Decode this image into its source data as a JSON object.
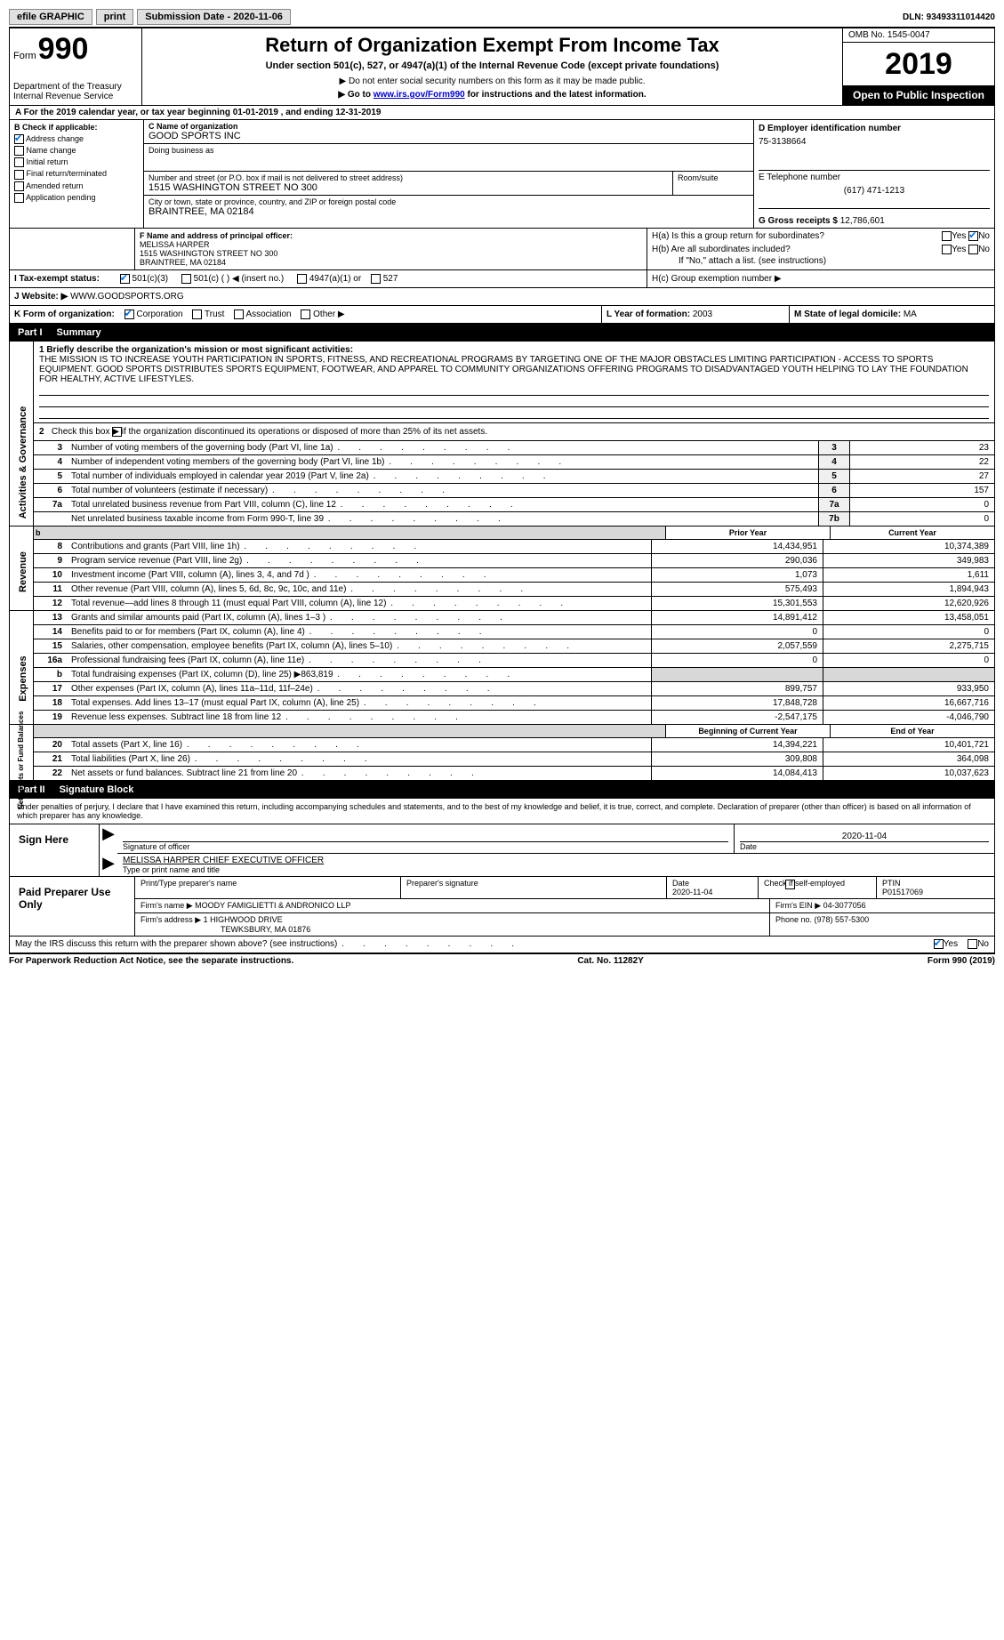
{
  "topbar": {
    "efile": "efile GRAPHIC",
    "print": "print",
    "sub_date_label": "Submission Date - 2020-11-06",
    "dln": "DLN: 93493311014420"
  },
  "header": {
    "form_label": "Form",
    "form_number": "990",
    "dept1": "Department of the Treasury",
    "dept2": "Internal Revenue Service",
    "title": "Return of Organization Exempt From Income Tax",
    "subtitle": "Under section 501(c), 527, or 4947(a)(1) of the Internal Revenue Code (except private foundations)",
    "note1": "▶ Do not enter social security numbers on this form as it may be made public.",
    "note2_a": "▶ Go to ",
    "note2_link": "www.irs.gov/Form990",
    "note2_b": " for instructions and the latest information.",
    "omb": "OMB No. 1545-0047",
    "year": "2019",
    "pub_insp": "Open to Public Inspection"
  },
  "tax_year_row": "A For the 2019 calendar year, or tax year beginning 01-01-2019    , and ending 12-31-2019",
  "section_b": {
    "title": "B Check if applicable:",
    "items": [
      "Address change",
      "Name change",
      "Initial return",
      "Final return/terminated",
      "Amended return",
      "Application pending"
    ],
    "checked_index": 0
  },
  "section_c": {
    "label_name": "C Name of organization",
    "org_name": "GOOD SPORTS INC",
    "dba_label": "Doing business as",
    "addr_label": "Number and street (or P.O. box if mail is not delivered to street address)",
    "room_label": "Room/suite",
    "addr": "1515 WASHINGTON STREET NO 300",
    "city_label": "City or town, state or province, country, and ZIP or foreign postal code",
    "city": "BRAINTREE, MA  02184"
  },
  "section_d": {
    "label": "D Employer identification number",
    "value": "75-3138664",
    "e_label": "E Telephone number",
    "e_value": "(617) 471-1213",
    "g_label": "G Gross receipts $ ",
    "g_value": "12,786,601"
  },
  "section_f": {
    "label": "F Name and address of principal officer:",
    "name": "MELISSA HARPER",
    "addr1": "1515 WASHINGTON STREET NO 300",
    "addr2": "BRAINTREE, MA  02184"
  },
  "section_h": {
    "ha": "H(a)  Is this a group return for subordinates?",
    "hb": "H(b)  Are all subordinates included?",
    "hb_note": "If \"No,\" attach a list. (see instructions)",
    "hc": "H(c)  Group exemption number ▶",
    "yes": "Yes",
    "no": "No"
  },
  "row_i": {
    "label": "I   Tax-exempt status:",
    "opts": [
      "501(c)(3)",
      "501(c) (  ) ◀ (insert no.)",
      "4947(a)(1) or",
      "527"
    ]
  },
  "row_j": {
    "label": "J   Website: ▶",
    "value": " WWW.GOODSPORTS.ORG"
  },
  "row_k": {
    "label": "K Form of organization:",
    "opts": [
      "Corporation",
      "Trust",
      "Association",
      "Other ▶"
    ],
    "l_label": "L Year of formation: ",
    "l_value": "2003",
    "m_label": "M State of legal domicile: ",
    "m_value": "MA"
  },
  "part1": {
    "part_label": "Part I",
    "title": "Summary",
    "mission_label": "1  Briefly describe the organization's mission or most significant activities:",
    "mission": "THE MISSION IS TO INCREASE YOUTH PARTICIPATION IN SPORTS, FITNESS, AND RECREATIONAL PROGRAMS BY TARGETING ONE OF THE MAJOR OBSTACLES LIMITING PARTICIPATION - ACCESS TO SPORTS EQUIPMENT. GOOD SPORTS DISTRIBUTES SPORTS EQUIPMENT, FOOTWEAR, AND APPAREL TO COMMUNITY ORGANIZATIONS OFFERING PROGRAMS TO DISADVANTAGED YOUTH HELPING TO LAY THE FOUNDATION FOR HEALTHY, ACTIVE LIFESTYLES.",
    "line2": "Check this box ▶      if the organization discontinued its operations or disposed of more than 25% of its net assets.",
    "governance": {
      "side": "Activities & Governance",
      "rows": [
        {
          "n": "3",
          "t": "Number of voting members of the governing body (Part VI, line 1a)",
          "box": "3",
          "v": "23"
        },
        {
          "n": "4",
          "t": "Number of independent voting members of the governing body (Part VI, line 1b)",
          "box": "4",
          "v": "22"
        },
        {
          "n": "5",
          "t": "Total number of individuals employed in calendar year 2019 (Part V, line 2a)",
          "box": "5",
          "v": "27"
        },
        {
          "n": "6",
          "t": "Total number of volunteers (estimate if necessary)",
          "box": "6",
          "v": "157"
        },
        {
          "n": "7a",
          "t": "Total unrelated business revenue from Part VIII, column (C), line 12",
          "box": "7a",
          "v": "0"
        },
        {
          "n": "",
          "t": "Net unrelated business taxable income from Form 990-T, line 39",
          "box": "7b",
          "v": "0"
        }
      ]
    },
    "prior_current": {
      "spacer": "b",
      "prior": "Prior Year",
      "current": "Current Year"
    },
    "revenue": {
      "side": "Revenue",
      "rows": [
        {
          "n": "8",
          "t": "Contributions and grants (Part VIII, line 1h)",
          "p": "14,434,951",
          "c": "10,374,389"
        },
        {
          "n": "9",
          "t": "Program service revenue (Part VIII, line 2g)",
          "p": "290,036",
          "c": "349,983"
        },
        {
          "n": "10",
          "t": "Investment income (Part VIII, column (A), lines 3, 4, and 7d )",
          "p": "1,073",
          "c": "1,611"
        },
        {
          "n": "11",
          "t": "Other revenue (Part VIII, column (A), lines 5, 6d, 8c, 9c, 10c, and 11e)",
          "p": "575,493",
          "c": "1,894,943"
        },
        {
          "n": "12",
          "t": "Total revenue—add lines 8 through 11 (must equal Part VIII, column (A), line 12)",
          "p": "15,301,553",
          "c": "12,620,926"
        }
      ]
    },
    "expenses": {
      "side": "Expenses",
      "rows": [
        {
          "n": "13",
          "t": "Grants and similar amounts paid (Part IX, column (A), lines 1–3 )",
          "p": "14,891,412",
          "c": "13,458,051"
        },
        {
          "n": "14",
          "t": "Benefits paid to or for members (Part IX, column (A), line 4)",
          "p": "0",
          "c": "0"
        },
        {
          "n": "15",
          "t": "Salaries, other compensation, employee benefits (Part IX, column (A), lines 5–10)",
          "p": "2,057,559",
          "c": "2,275,715"
        },
        {
          "n": "16a",
          "t": "Professional fundraising fees (Part IX, column (A), line 11e)",
          "p": "0",
          "c": "0"
        },
        {
          "n": "b",
          "t": "Total fundraising expenses (Part IX, column (D), line 25) ▶863,819",
          "p": "",
          "c": "",
          "shaded": true
        },
        {
          "n": "17",
          "t": "Other expenses (Part IX, column (A), lines 11a–11d, 11f–24e)",
          "p": "899,757",
          "c": "933,950"
        },
        {
          "n": "18",
          "t": "Total expenses. Add lines 13–17 (must equal Part IX, column (A), line 25)",
          "p": "17,848,728",
          "c": "16,667,716"
        },
        {
          "n": "19",
          "t": "Revenue less expenses. Subtract line 18 from line 12",
          "p": "-2,547,175",
          "c": "-4,046,790"
        }
      ]
    },
    "net_assets_head": {
      "begin": "Beginning of Current Year",
      "end": "End of Year"
    },
    "net_assets": {
      "side": "Net Assets or Fund Balances",
      "rows": [
        {
          "n": "20",
          "t": "Total assets (Part X, line 16)",
          "p": "14,394,221",
          "c": "10,401,721"
        },
        {
          "n": "21",
          "t": "Total liabilities (Part X, line 26)",
          "p": "309,808",
          "c": "364,098"
        },
        {
          "n": "22",
          "t": "Net assets or fund balances. Subtract line 21 from line 20",
          "p": "14,084,413",
          "c": "10,037,623"
        }
      ]
    }
  },
  "part2": {
    "part_label": "Part II",
    "title": "Signature Block",
    "declaration": "Under penalties of perjury, I declare that I have examined this return, including accompanying schedules and statements, and to the best of my knowledge and belief, it is true, correct, and complete. Declaration of preparer (other than officer) is based on all information of which preparer has any knowledge.",
    "sign_here": "Sign Here",
    "sig_officer": "Signature of officer",
    "sig_date": "2020-11-04",
    "date_label": "Date",
    "officer_name": "MELISSA HARPER  CHIEF EXECUTIVE OFFICER",
    "type_name": "Type or print name and title",
    "paid_prep": "Paid Preparer Use Only",
    "prep_name_label": "Print/Type preparer's name",
    "prep_sig_label": "Preparer's signature",
    "prep_date_label": "Date",
    "prep_date": "2020-11-04",
    "self_emp": "Check        if self-employed",
    "ptin_label": "PTIN",
    "ptin": "P01517069",
    "firm_name_label": "Firm's name    ▶ ",
    "firm_name": "MOODY FAMIGLIETTI & ANDRONICO LLP",
    "firm_ein_label": "Firm's EIN ▶ ",
    "firm_ein": "04-3077056",
    "firm_addr_label": "Firm's address ▶ ",
    "firm_addr1": "1 HIGHWOOD DRIVE",
    "firm_addr2": "TEWKSBURY, MA  01876",
    "phone_label": "Phone no. ",
    "phone": "(978) 557-5300",
    "discuss": "May the IRS discuss this return with the preparer shown above? (see instructions)",
    "yes": "Yes",
    "no": "No"
  },
  "footer": {
    "left": "For Paperwork Reduction Act Notice, see the separate instructions.",
    "mid": "Cat. No. 11282Y",
    "right_a": "Form ",
    "right_b": "990",
    "right_c": " (2019)"
  }
}
